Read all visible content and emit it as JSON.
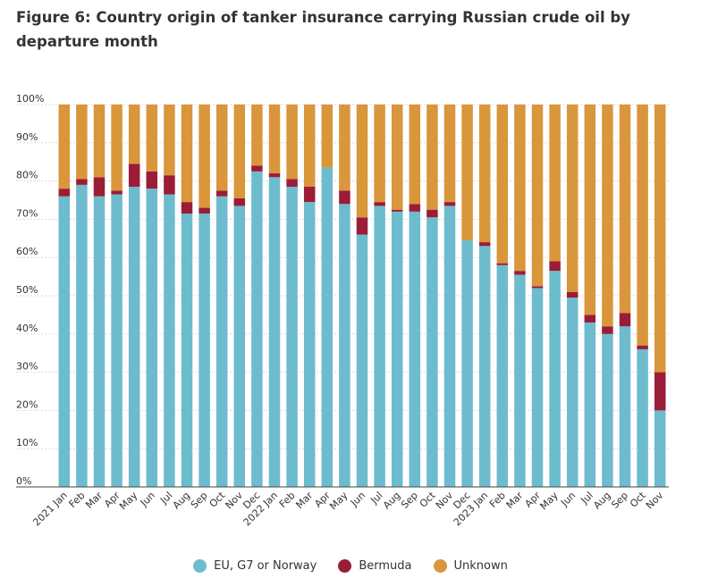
{
  "title": "Figure 6: Country origin of tanker insurance carrying Russian crude oil by departure month",
  "chart_data": {
    "type": "bar",
    "stacked": true,
    "title": "Figure 6: Country origin of tanker insurance carrying Russian crude oil by departure month",
    "xlabel": "",
    "ylabel": "",
    "ylim": [
      0,
      100
    ],
    "yticks": [
      "0%",
      "10%",
      "20%",
      "30%",
      "40%",
      "50%",
      "60%",
      "70%",
      "80%",
      "90%",
      "100%"
    ],
    "categories": [
      "2021 Jan",
      "Feb",
      "Mar",
      "Apr",
      "May",
      "Jun",
      "Jul",
      "Aug",
      "Sep",
      "Oct",
      "Nov",
      "Dec",
      "2022 Jan",
      "Feb",
      "Mar",
      "Apr",
      "May",
      "Jun",
      "Jul",
      "Aug",
      "Sep",
      "Oct",
      "Nov",
      "Dec",
      "2023 Jan",
      "Feb",
      "Mar",
      "Apr",
      "May",
      "Jun",
      "Jul",
      "Aug",
      "Sep",
      "Oct",
      "Nov"
    ],
    "series": [
      {
        "name": "EU, G7 or Norway",
        "color": "#6cbccd",
        "values": [
          76,
          79,
          76,
          76.5,
          78.5,
          78,
          76.5,
          71.5,
          71.5,
          76,
          73.5,
          82.5,
          81,
          78.5,
          74.5,
          83.5,
          74,
          66,
          73.5,
          72,
          72,
          70.5,
          73.5,
          64.5,
          63,
          58,
          55.5,
          52,
          56.5,
          49.5,
          43,
          40,
          42,
          36,
          20
        ]
      },
      {
        "name": "Bermuda",
        "color": "#9b1c37",
        "values": [
          2,
          1.5,
          5,
          1,
          6,
          4.5,
          5,
          3,
          1.5,
          1.5,
          2,
          1.5,
          1,
          2,
          4,
          0,
          3.5,
          4.5,
          1,
          0.5,
          2,
          2,
          1,
          0,
          1,
          0.5,
          1,
          0.5,
          2.5,
          1.5,
          2,
          2,
          3.5,
          1,
          10
        ]
      },
      {
        "name": "Unknown",
        "color": "#d9963a",
        "values": [
          22,
          19.5,
          19,
          22.5,
          15.5,
          17.5,
          18.5,
          25.5,
          27,
          22.5,
          24.5,
          16,
          18,
          19.5,
          21.5,
          16.5,
          22.5,
          29.5,
          25.5,
          27.5,
          26,
          27.5,
          25.5,
          35.5,
          36,
          41.5,
          43.5,
          47.5,
          41,
          49,
          55,
          58,
          54.5,
          63,
          70
        ]
      }
    ],
    "legend_position": "bottom",
    "grid": true
  }
}
